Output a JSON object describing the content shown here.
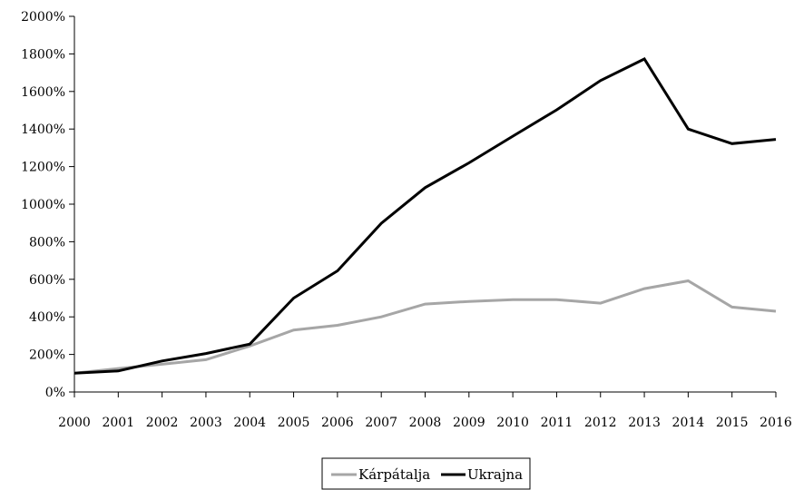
{
  "chart_data": {
    "type": "line",
    "title": "",
    "xlabel": "",
    "ylabel": "",
    "x": [
      "2000",
      "2001",
      "2002",
      "2003",
      "2004",
      "2005",
      "2006",
      "2007",
      "2008",
      "2009",
      "2010",
      "2011",
      "2012",
      "2013",
      "2014",
      "2015",
      "2016"
    ],
    "ylim": [
      0,
      2000
    ],
    "yticks": [
      0,
      200,
      400,
      600,
      800,
      1000,
      1200,
      1400,
      1600,
      1800,
      2000
    ],
    "ytick_labels": [
      "0%",
      "200%",
      "400%",
      "600%",
      "800%",
      "1000%",
      "1200%",
      "1400%",
      "1600%",
      "1800%",
      "2000%"
    ],
    "grid": false,
    "legend_position": "bottom",
    "series": [
      {
        "name": "Kárpátalja",
        "color": "#a6a6a6",
        "values": [
          100,
          125,
          148,
          172,
          245,
          330,
          355,
          400,
          468,
          482,
          492,
          492,
          473,
          550,
          592,
          452,
          430
        ]
      },
      {
        "name": "Ukrajna",
        "color": "#000000",
        "values": [
          100,
          112,
          165,
          205,
          255,
          500,
          645,
          898,
          1088,
          1220,
          1362,
          1502,
          1658,
          1773,
          1400,
          1322,
          1345
        ]
      }
    ]
  }
}
